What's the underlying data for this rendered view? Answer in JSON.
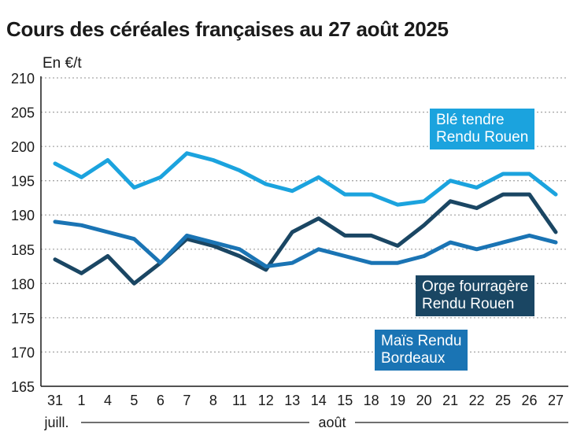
{
  "chart_data": {
    "type": "line",
    "title": "Cours des céréales françaises au 27 août 2025",
    "ylabel": "En €/t",
    "xlabel": "",
    "ylim": [
      165,
      210
    ],
    "yticks": [
      "165",
      "170",
      "175",
      "180",
      "185",
      "190",
      "195",
      "200",
      "205",
      "210"
    ],
    "grid": true,
    "categories": [
      "31",
      "1",
      "4",
      "5",
      "6",
      "7",
      "8",
      "11",
      "12",
      "13",
      "14",
      "15",
      "18",
      "19",
      "20",
      "21",
      "22",
      "25",
      "26",
      "27"
    ],
    "month_labels": [
      "juill.",
      "août"
    ],
    "series": [
      {
        "name": "Blé tendre Rendu Rouen",
        "name_lines": [
          "Blé tendre",
          "Rendu Rouen"
        ],
        "color": "#1ba3de",
        "values": [
          197.5,
          195.5,
          198,
          194,
          195.5,
          199,
          198,
          196.5,
          194.5,
          193.5,
          195.5,
          193,
          193,
          191.5,
          192,
          195,
          194,
          196,
          196,
          193
        ]
      },
      {
        "name": "Orge fourragère Rendu Rouen",
        "name_lines": [
          "Orge fourragère",
          "Rendu Rouen"
        ],
        "color": "#1a4663",
        "values": [
          183.5,
          181.5,
          184,
          180,
          183,
          186.5,
          185.5,
          184,
          182,
          187.5,
          189.5,
          187,
          187,
          185.5,
          188.5,
          192,
          191,
          193,
          193,
          187.5
        ]
      },
      {
        "name": "Maïs Rendu Bordeaux",
        "name_lines": [
          "Maïs Rendu",
          "Bordeaux"
        ],
        "color": "#1a74b4",
        "values": [
          189,
          188.5,
          187.5,
          186.5,
          183,
          187,
          186,
          185,
          182.5,
          183,
          185,
          184,
          183,
          183,
          184,
          186,
          185,
          186,
          187,
          186
        ]
      }
    ]
  }
}
